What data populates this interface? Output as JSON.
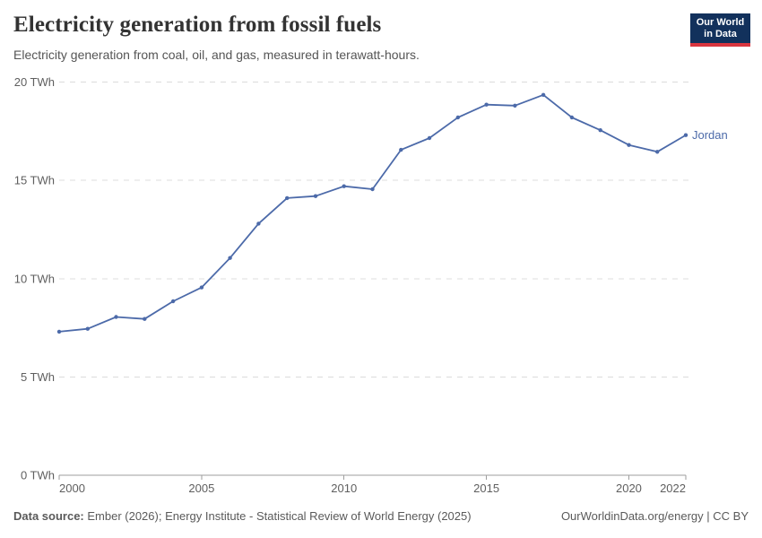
{
  "header": {
    "title": "Electricity generation from fossil fuels",
    "subtitle": "Electricity generation from coal, oil, and gas, measured in terawatt-hours.",
    "logo": {
      "line1": "Our World",
      "line2": "in Data"
    }
  },
  "footer": {
    "source_label": "Data source:",
    "source_text": " Ember (2026); Energy Institute - Statistical Review of World Energy (2025)",
    "credit": "OurWorldinData.org/energy | CC BY"
  },
  "colors": {
    "line": "#4c6aa9",
    "grid": "#dcdcdc",
    "axis": "#9e9e9e",
    "axis_label": "#5f5f5f",
    "logo_navy": "#12315c",
    "logo_red": "#d9353f"
  },
  "chart_data": {
    "type": "line",
    "title": "Electricity generation from fossil fuels",
    "xlabel": "",
    "ylabel": "",
    "xlim": [
      2000,
      2022
    ],
    "ylim": [
      0,
      20
    ],
    "grid": "horizontal-dashed",
    "legend_position": "end-of-line label",
    "y_ticks": [
      {
        "value": 0,
        "label": "0 TWh"
      },
      {
        "value": 5,
        "label": "5 TWh"
      },
      {
        "value": 10,
        "label": "10 TWh"
      },
      {
        "value": 15,
        "label": "15 TWh"
      },
      {
        "value": 20,
        "label": "20 TWh"
      }
    ],
    "x_ticks": [
      {
        "value": 2000,
        "label": "2000",
        "align": "start"
      },
      {
        "value": 2005,
        "label": "2005",
        "align": "middle"
      },
      {
        "value": 2010,
        "label": "2010",
        "align": "middle"
      },
      {
        "value": 2015,
        "label": "2015",
        "align": "middle"
      },
      {
        "value": 2020,
        "label": "2020",
        "align": "middle"
      },
      {
        "value": 2022,
        "label": "2022",
        "align": "end"
      }
    ],
    "series": [
      {
        "name": "Jordan",
        "color": "#4c6aa9",
        "x": [
          2000,
          2001,
          2002,
          2003,
          2004,
          2005,
          2006,
          2007,
          2008,
          2009,
          2010,
          2011,
          2012,
          2013,
          2014,
          2015,
          2016,
          2017,
          2018,
          2019,
          2020,
          2021,
          2022
        ],
        "values": [
          7.3,
          7.45,
          8.05,
          7.95,
          8.85,
          9.55,
          11.05,
          12.8,
          14.1,
          14.2,
          14.7,
          14.55,
          16.55,
          17.15,
          18.2,
          18.85,
          18.8,
          19.35,
          18.2,
          17.55,
          16.8,
          16.45,
          17.3
        ]
      }
    ]
  }
}
